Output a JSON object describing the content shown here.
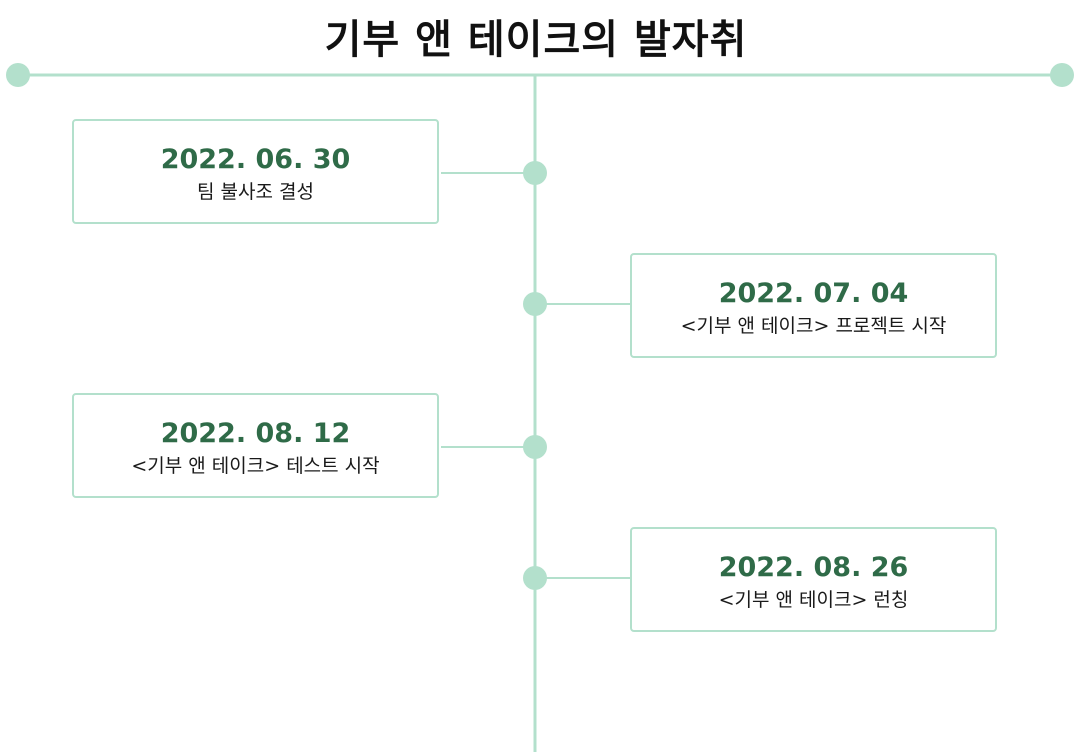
{
  "title": "기부 앤 테이크의 발자취",
  "colors": {
    "line": "#b3e0cc",
    "node": "#b3e0cc",
    "date_text": "#2f6b48",
    "card_border": "#b3e0cc"
  },
  "events": [
    {
      "date": "2022. 06. 30",
      "description": "팀 불사조 결성"
    },
    {
      "date": "2022. 07. 04",
      "description": "<기부 앤 테이크> 프로젝트 시작"
    },
    {
      "date": "2022. 08. 12",
      "description": "<기부 앤 테이크> 테스트 시작"
    },
    {
      "date": "2022. 08. 26",
      "description": "<기부 앤 테이크> 런칭"
    }
  ]
}
